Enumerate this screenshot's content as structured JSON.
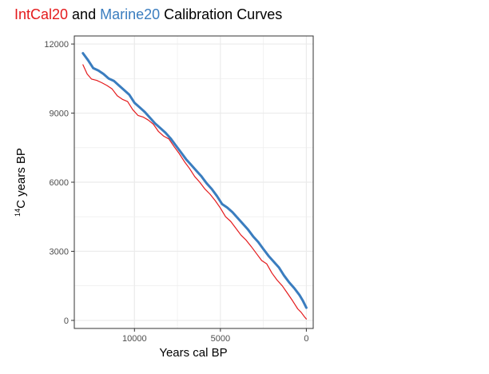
{
  "chart_data": {
    "type": "line",
    "title": {
      "part1": "IntCal20",
      "part2": " and ",
      "part3": "Marine20",
      "part4": " Calibration Curves"
    },
    "xlabel": "Years cal BP",
    "ylabel": {
      "superscript": "14",
      "main": "C  years  BP"
    },
    "xlim": [
      13500,
      -400
    ],
    "ylim": [
      -350,
      12350
    ],
    "x_reversed": true,
    "x_ticks": [
      10000,
      5000,
      0
    ],
    "x_tick_labels": [
      "10000",
      "5000",
      "0"
    ],
    "y_ticks": [
      0,
      3000,
      6000,
      9000,
      12000
    ],
    "y_tick_labels": [
      "0",
      "3000",
      "6000",
      "9000",
      "12000"
    ],
    "grid": true,
    "legend": "none",
    "series": [
      {
        "name": "IntCal20",
        "color": "#e41a1c",
        "x": [
          13000,
          12750,
          12500,
          12200,
          11900,
          11600,
          11300,
          11000,
          10700,
          10400,
          10100,
          9800,
          9500,
          9200,
          8900,
          8600,
          8300,
          8000,
          7700,
          7400,
          7100,
          6800,
          6500,
          6200,
          5900,
          5600,
          5300,
          5000,
          4700,
          4400,
          4100,
          3800,
          3500,
          3200,
          2900,
          2600,
          2300,
          2000,
          1700,
          1400,
          1100,
          800,
          500,
          300,
          100,
          0
        ],
        "y": [
          11100,
          10700,
          10480,
          10420,
          10320,
          10200,
          10050,
          9750,
          9600,
          9500,
          9150,
          8900,
          8830,
          8700,
          8520,
          8200,
          8000,
          7880,
          7550,
          7250,
          6900,
          6600,
          6250,
          6000,
          5700,
          5480,
          5200,
          4880,
          4500,
          4300,
          4000,
          3700,
          3480,
          3200,
          2900,
          2600,
          2450,
          2050,
          1750,
          1500,
          1180,
          850,
          500,
          350,
          150,
          60
        ]
      },
      {
        "name": "Marine20",
        "color": "#3a7dbf",
        "x": [
          13000,
          12700,
          12400,
          12100,
          11800,
          11500,
          11200,
          10900,
          10600,
          10300,
          10000,
          9700,
          9400,
          9100,
          8800,
          8500,
          8200,
          7900,
          7600,
          7300,
          7000,
          6700,
          6400,
          6100,
          5800,
          5500,
          5200,
          4900,
          4600,
          4300,
          4000,
          3700,
          3400,
          3100,
          2800,
          2500,
          2200,
          1900,
          1600,
          1300,
          1000,
          700,
          400,
          200,
          0
        ],
        "y": [
          11600,
          11300,
          10950,
          10850,
          10700,
          10500,
          10400,
          10200,
          10000,
          9800,
          9450,
          9250,
          9050,
          8800,
          8550,
          8350,
          8150,
          7900,
          7600,
          7300,
          7000,
          6750,
          6500,
          6250,
          5950,
          5700,
          5400,
          5050,
          4900,
          4700,
          4450,
          4200,
          3950,
          3650,
          3400,
          3100,
          2800,
          2550,
          2300,
          1950,
          1650,
          1400,
          1100,
          850,
          550
        ]
      }
    ]
  },
  "colors": {
    "intcal": "#e41a1c",
    "marine": "#3a7dbf",
    "text": "#000000",
    "tick": "#4d4d4d",
    "grid": "#ebebeb",
    "panel_border": "#333333"
  }
}
